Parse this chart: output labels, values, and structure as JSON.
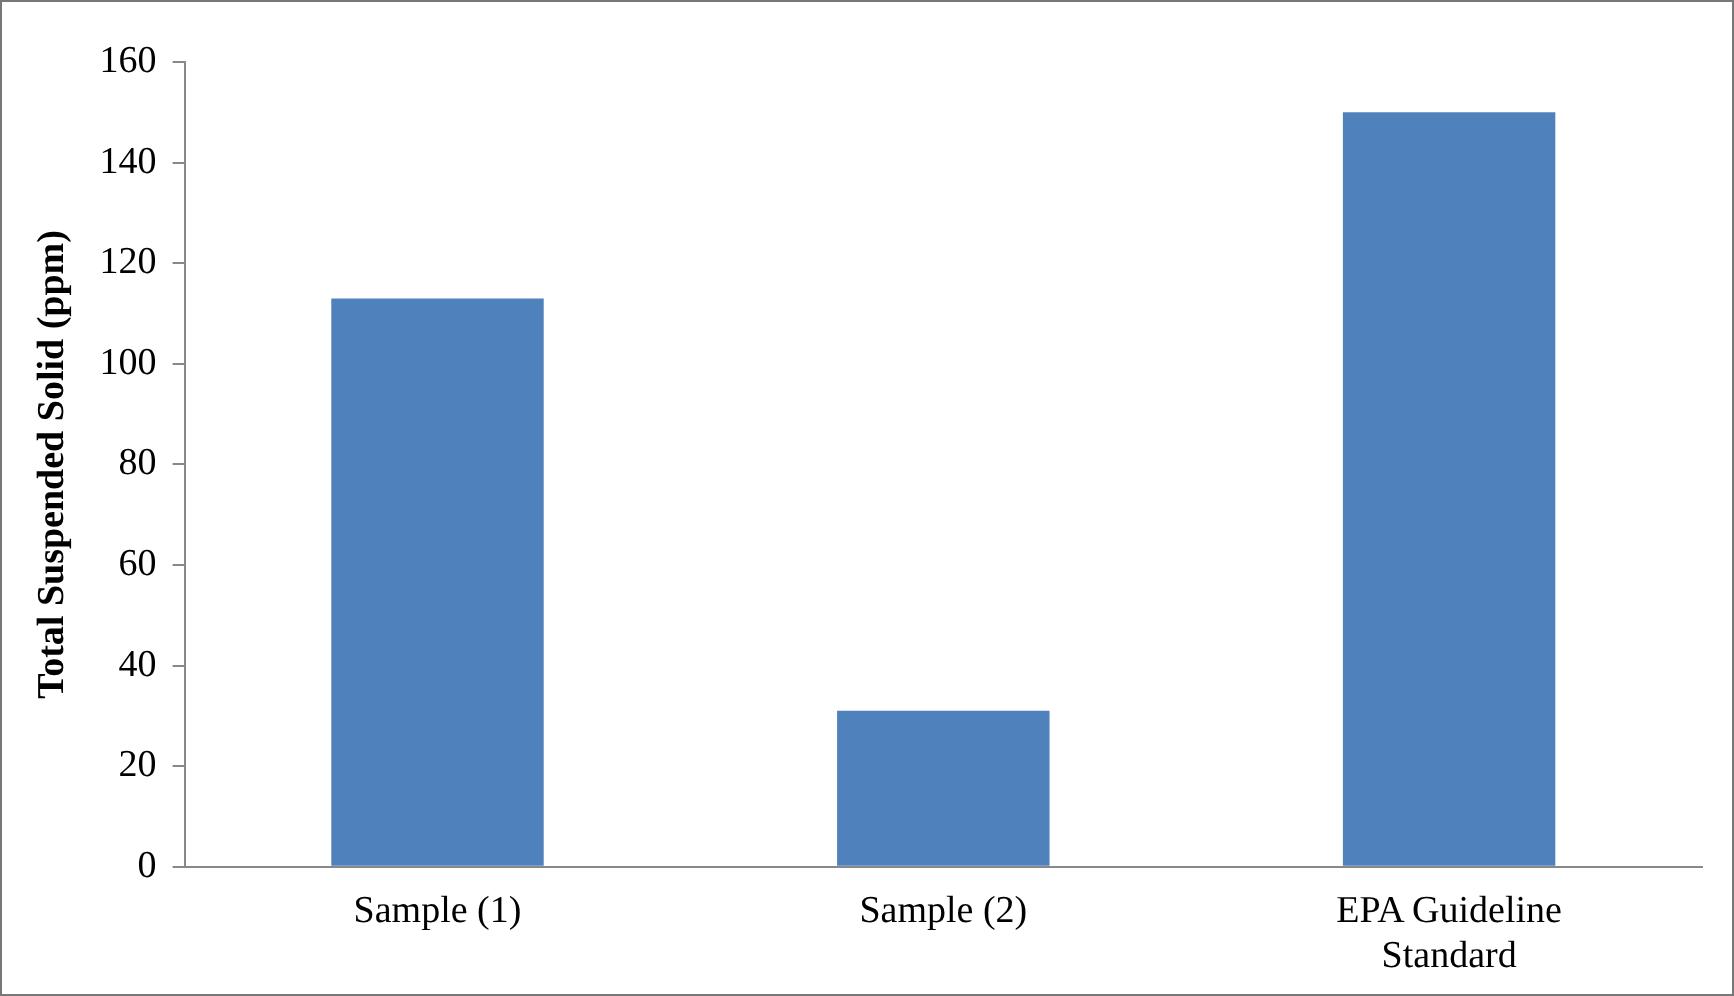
{
  "chart_data": {
    "type": "bar",
    "ylabel": "Total Suspended Solid (ppm)",
    "categories": [
      "Sample (1)",
      "Sample (2)",
      "EPA Guideline Standard"
    ],
    "values": [
      113,
      31,
      150
    ],
    "color": "#4f81bd",
    "ylim": [
      0,
      160
    ],
    "yticks": [
      0,
      20,
      40,
      60,
      80,
      100,
      120,
      140,
      160
    ],
    "grid": false,
    "legend": false
  }
}
